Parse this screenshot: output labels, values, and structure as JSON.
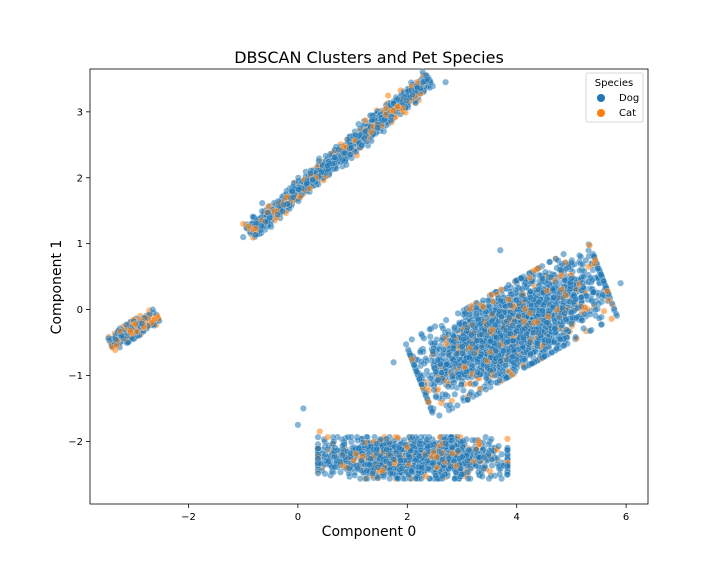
{
  "chart_data": {
    "type": "scatter",
    "title": "DBSCAN Clusters and Pet Species",
    "xlabel": "Component 0",
    "ylabel": "Component 1",
    "xlim": [
      -3.8,
      6.4
    ],
    "ylim": [
      -2.95,
      3.65
    ],
    "xticks": [
      -2,
      0,
      2,
      4,
      6
    ],
    "yticks": [
      -2,
      -1,
      0,
      1,
      2,
      3
    ],
    "xtick_labels": [
      "−2",
      "0",
      "2",
      "4",
      "6"
    ],
    "ytick_labels": [
      "−2",
      "−1",
      "0",
      "1",
      "2",
      "3"
    ],
    "grid": false,
    "legend": {
      "title": "Species",
      "position": "top-right",
      "entries": [
        {
          "label": "Dog",
          "color": "#1f77b4"
        },
        {
          "label": "Cat",
          "color": "#ff7f0e"
        }
      ]
    },
    "point_opacity": 0.55,
    "clusters": [
      {
        "name": "cluster-small-left",
        "shape": "ellipse",
        "center": [
          -3.0,
          -0.3
        ],
        "semi_axes": [
          0.45,
          0.12
        ],
        "angle_deg": 27,
        "count": 400,
        "species_mix": {
          "Dog": 0.6,
          "Cat": 0.4
        }
      },
      {
        "name": "cluster-diagonal",
        "shape": "line",
        "start": [
          -0.9,
          1.15
        ],
        "end": [
          2.4,
          3.5
        ],
        "half_width": 0.12,
        "count": 1600,
        "species_mix": {
          "Dog": 0.8,
          "Cat": 0.2
        }
      },
      {
        "name": "cluster-large-right",
        "shape": "ellipse",
        "center": [
          3.9,
          -0.3
        ],
        "semi_axes": [
          1.75,
          0.6
        ],
        "angle_deg": 25,
        "count": 2600,
        "species_mix": {
          "Dog": 0.88,
          "Cat": 0.12
        }
      },
      {
        "name": "cluster-bottom",
        "shape": "ellipse",
        "center": [
          2.1,
          -2.25
        ],
        "semi_axes": [
          1.65,
          0.3
        ],
        "angle_deg": 0,
        "count": 1500,
        "species_mix": {
          "Dog": 0.85,
          "Cat": 0.15
        }
      }
    ],
    "outliers": [
      {
        "x": 0.1,
        "y": -1.5,
        "species": "Dog"
      },
      {
        "x": 0.0,
        "y": -1.75,
        "species": "Dog"
      },
      {
        "x": 0.4,
        "y": -1.85,
        "species": "Cat"
      },
      {
        "x": -1.0,
        "y": 1.3,
        "species": "Cat"
      },
      {
        "x": -1.0,
        "y": 1.1,
        "species": "Dog"
      },
      {
        "x": 2.7,
        "y": 3.45,
        "species": "Dog"
      },
      {
        "x": 5.9,
        "y": 0.4,
        "species": "Dog"
      },
      {
        "x": 1.75,
        "y": -0.8,
        "species": "Dog"
      },
      {
        "x": 3.7,
        "y": 0.9,
        "species": "Dog"
      }
    ]
  }
}
